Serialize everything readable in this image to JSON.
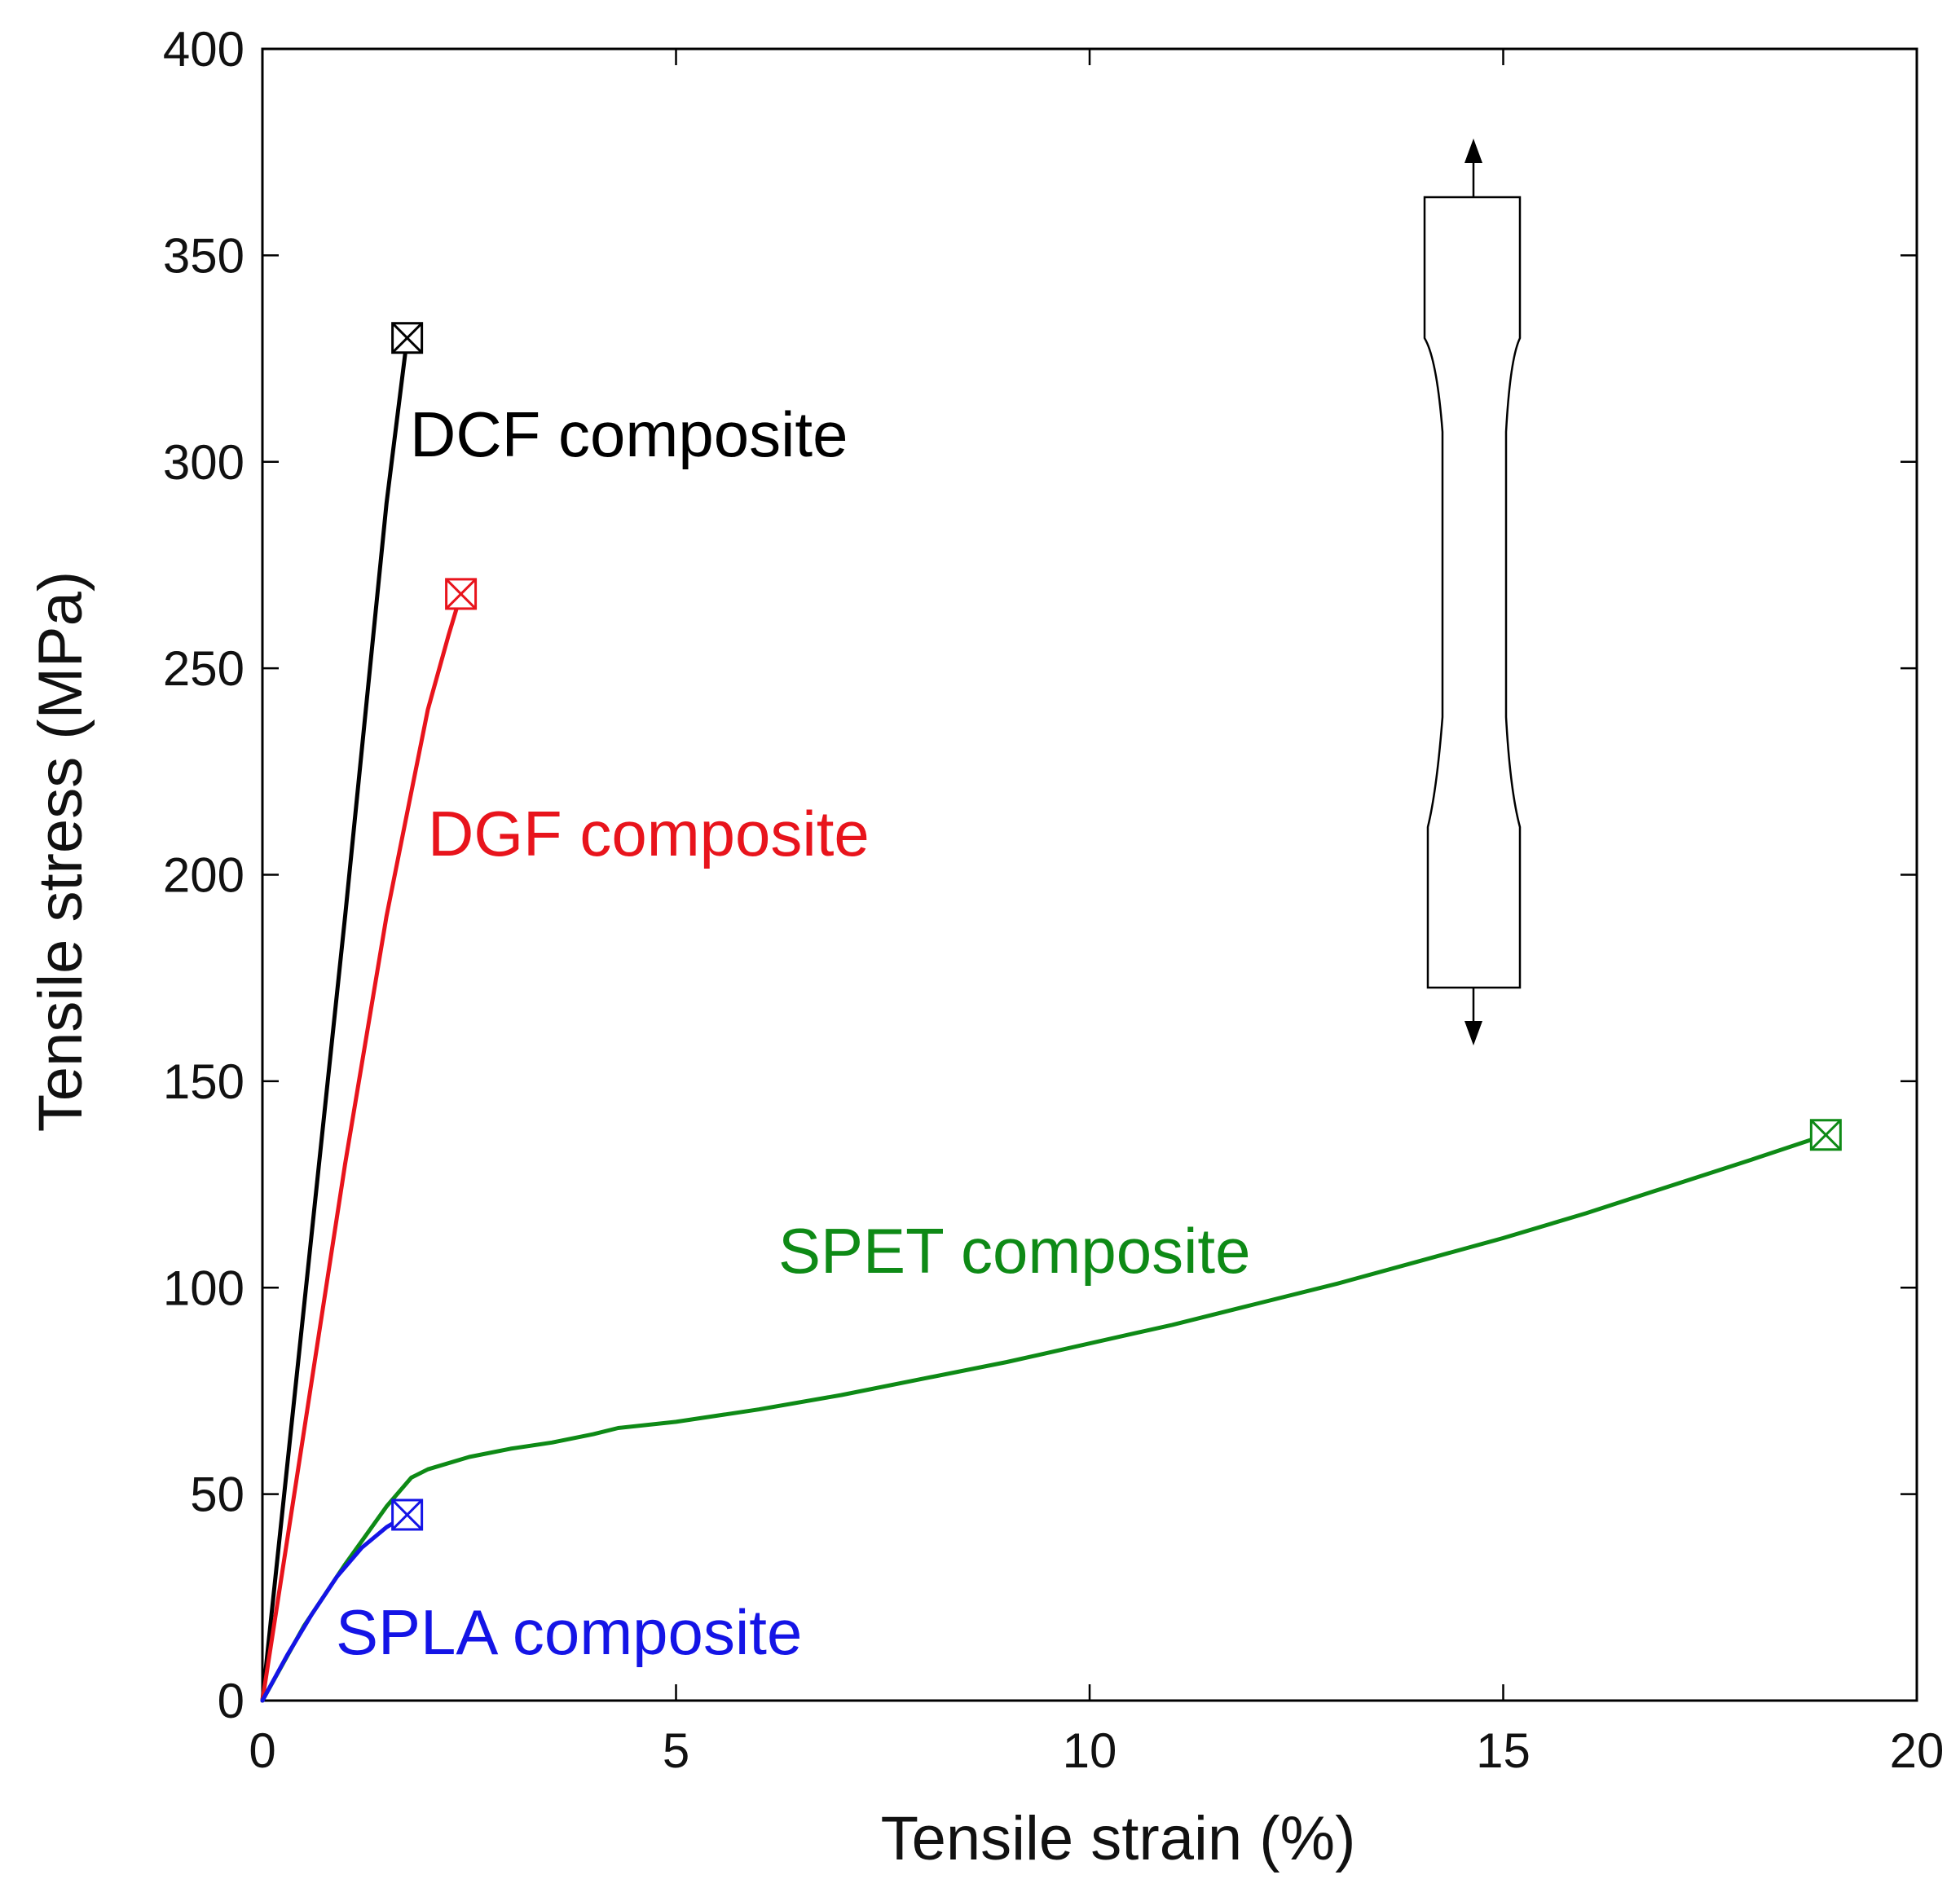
{
  "chart_data": {
    "type": "line",
    "title": "",
    "xlabel": "Tensile strain (%)",
    "ylabel": "Tensile stress (MPa)",
    "xlim": [
      0,
      20
    ],
    "ylim": [
      0,
      400
    ],
    "xticks": [
      0,
      5,
      10,
      15,
      20
    ],
    "yticks": [
      0,
      50,
      100,
      150,
      200,
      250,
      300,
      350,
      400
    ],
    "xtick_labels": [
      "0",
      "5",
      "10",
      "15",
      "20"
    ],
    "ytick_labels": [
      "0",
      "50",
      "100",
      "150",
      "200",
      "250",
      "300",
      "350",
      "400"
    ],
    "grid": false,
    "series": [
      {
        "name": "DCF composite",
        "label": "DCF composite",
        "color": "#000000",
        "x": [
          0,
          0.5,
          1.0,
          1.5,
          1.75
        ],
        "y": [
          0,
          95,
          190,
          290,
          330
        ],
        "failure_point": [
          1.75,
          330
        ]
      },
      {
        "name": "DGF composite",
        "label": "DGF composite",
        "color": "#e8141c",
        "x": [
          0,
          0.5,
          1.0,
          1.5,
          1.75,
          2.0,
          2.25,
          2.4
        ],
        "y": [
          0,
          65,
          130,
          190,
          215,
          240,
          258,
          268
        ],
        "failure_point": [
          2.4,
          268
        ]
      },
      {
        "name": "SPET composite",
        "label": "SPET composite",
        "color": "#0e8a16",
        "x": [
          0,
          0.5,
          1.0,
          1.5,
          1.8,
          2.0,
          2.5,
          3.0,
          3.5,
          4.0,
          4.3,
          5.0,
          6.0,
          7.0,
          8.0,
          9.0,
          10.0,
          11.0,
          12.0,
          13.0,
          14.0,
          15.0,
          16.0,
          17.0,
          18.0,
          18.9
        ],
        "y": [
          0,
          18,
          33,
          47,
          54,
          56,
          59,
          61,
          62.5,
          64.5,
          66,
          67.5,
          70.5,
          74,
          78,
          82,
          86.5,
          91,
          96,
          101,
          106.5,
          112,
          118,
          124.5,
          131,
          137
        ],
        "failure_point": [
          18.9,
          137
        ]
      },
      {
        "name": "SPLA composite",
        "label": "SPLA composite",
        "color": "#1414e6",
        "x": [
          0,
          0.3,
          0.6,
          0.9,
          1.2,
          1.5,
          1.75
        ],
        "y": [
          0,
          11,
          21,
          30,
          37,
          42,
          45
        ],
        "failure_point": [
          1.75,
          45
        ]
      }
    ],
    "annotations": [
      {
        "type": "failure-marker",
        "description": "square with X at end of each curve"
      },
      {
        "type": "inset-sketch",
        "description": "dog-bone tensile specimen with arrows pulling up and down"
      }
    ]
  }
}
